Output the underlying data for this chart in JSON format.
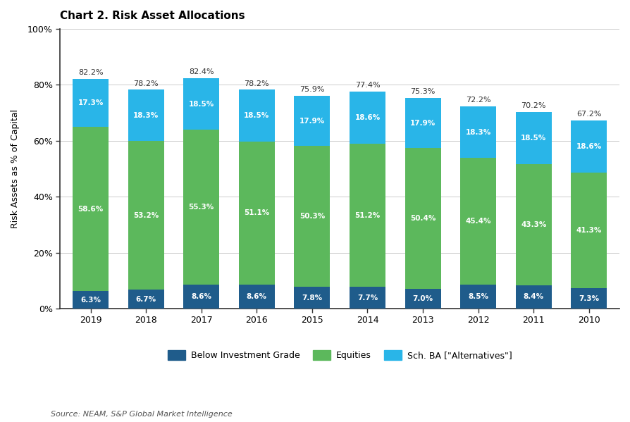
{
  "title": "Chart 2. Risk Asset Allocations",
  "ylabel": "Risk Assets as % of Capital",
  "source": "Source: NEAM, S&P Global Market Intelligence",
  "categories": [
    "2019",
    "2018",
    "2017",
    "2016",
    "2015",
    "2014",
    "2013",
    "2012",
    "2011",
    "2010"
  ],
  "below_investment_grade": [
    6.3,
    6.7,
    8.6,
    8.6,
    7.8,
    7.7,
    7.0,
    8.5,
    8.4,
    7.3
  ],
  "equities": [
    58.6,
    53.2,
    55.3,
    51.1,
    50.3,
    51.2,
    50.4,
    45.4,
    43.3,
    41.3
  ],
  "alternatives": [
    17.3,
    18.3,
    18.5,
    18.5,
    17.9,
    18.6,
    17.9,
    18.3,
    18.5,
    18.6
  ],
  "totals": [
    82.2,
    78.2,
    82.4,
    78.2,
    75.9,
    77.4,
    75.3,
    72.2,
    70.2,
    67.2
  ],
  "color_below": "#1f5c8b",
  "color_equities": "#5cb85c",
  "color_alternatives": "#29b5e8",
  "background_color": "#ffffff",
  "ylim": [
    0,
    100
  ],
  "yticks": [
    0,
    20,
    40,
    60,
    80,
    100
  ],
  "ytick_labels": [
    "0%",
    "20%",
    "40%",
    "60%",
    "80%",
    "100%"
  ],
  "legend_labels": [
    "Below Investment Grade",
    "Equities",
    "Sch. BA [\"Alternatives\"]"
  ],
  "bar_width": 0.65
}
